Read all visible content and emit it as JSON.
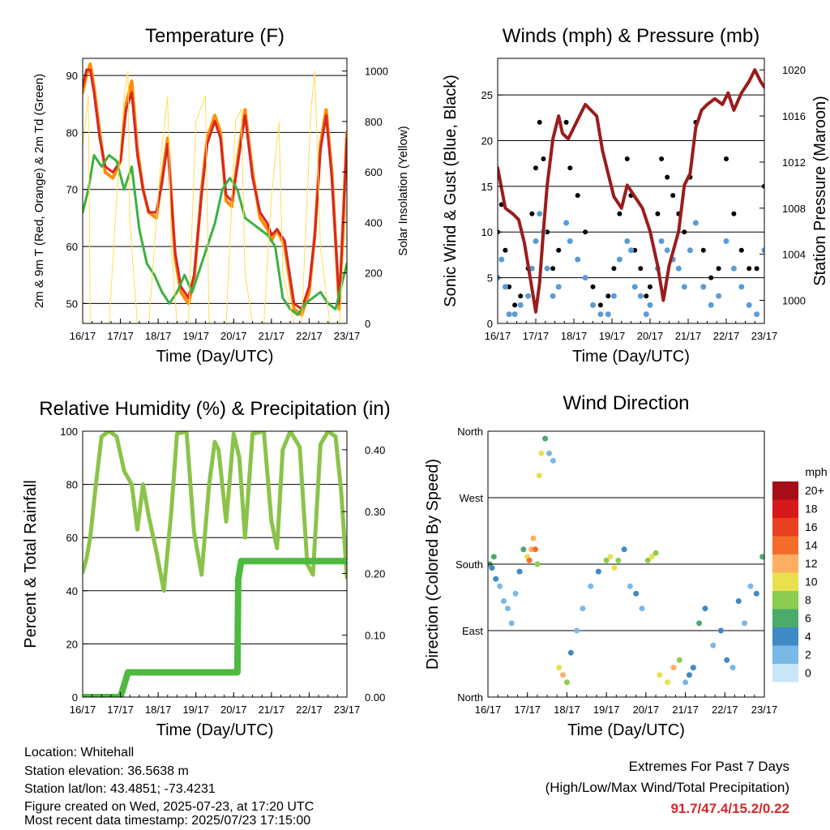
{
  "time_ticks": [
    "16/17",
    "17/17",
    "18/17",
    "19/17",
    "20/17",
    "21/17",
    "22/17",
    "23/17"
  ],
  "x_axis_label": "Time (Day/UTC)",
  "colors": {
    "temp_2m": "#ff8c00",
    "temp_9m": "#d62728",
    "dewpoint": "#3cb043",
    "insolation": "#ffdd55",
    "wind": "#5b9bd5",
    "gust": "#000000",
    "pressure": "#9b1c1c",
    "rh": "#8bc34a",
    "precip": "#4cbb3e"
  },
  "wind_speed_scale": {
    "unit": "mph",
    "labels": [
      "20+",
      "18",
      "16",
      "14",
      "12",
      "10",
      "8",
      "6",
      "4",
      "2",
      "0"
    ],
    "colors": [
      "#a50f15",
      "#d7191c",
      "#e8411f",
      "#f46d2a",
      "#fdae61",
      "#e9e050",
      "#8ccc50",
      "#4aab6a",
      "#3f89c4",
      "#7ab8e8",
      "#c8e6f8"
    ]
  },
  "chart_data": [
    {
      "type": "line",
      "title": "Temperature (F)",
      "xlabel": "Time (Day/UTC)",
      "ylabel": "2m & 9m T (Red, Orange) & 2m Td (Green)",
      "ylabel_right": "Solar Insolation (Yellow)",
      "xlim": [
        0,
        7
      ],
      "ylim": [
        46.5,
        93
      ],
      "yticks": [
        50,
        60,
        70,
        80,
        90
      ],
      "ylim_right": [
        0,
        1050
      ],
      "yticks_right": [
        0,
        200,
        400,
        600,
        800,
        1000
      ],
      "grid": true,
      "series": [
        {
          "name": "2m T",
          "axis": "left",
          "x": [
            0,
            0.1,
            0.2,
            0.3,
            0.45,
            0.6,
            0.8,
            1.0,
            1.15,
            1.3,
            1.45,
            1.6,
            1.75,
            1.95,
            2.1,
            2.25,
            2.45,
            2.6,
            2.8,
            2.95,
            3.15,
            3.3,
            3.5,
            3.65,
            3.8,
            3.95,
            4.1,
            4.3,
            4.5,
            4.7,
            4.9,
            5.0,
            5.15,
            5.35,
            5.6,
            5.8,
            6.0,
            6.15,
            6.3,
            6.45,
            6.6,
            6.8,
            7.0
          ],
          "y": [
            87,
            90,
            92,
            88,
            80,
            73,
            72,
            75,
            85,
            89,
            77,
            70,
            66,
            65,
            72,
            79,
            58,
            52,
            50,
            54,
            70,
            79,
            83,
            80,
            68,
            67,
            75,
            84,
            73,
            65,
            63,
            61,
            63,
            60,
            49,
            48,
            52,
            62,
            78,
            84,
            73,
            49,
            80
          ]
        },
        {
          "name": "9m T",
          "axis": "left",
          "x": [
            0,
            0.1,
            0.2,
            0.3,
            0.45,
            0.6,
            0.8,
            1.0,
            1.15,
            1.3,
            1.45,
            1.6,
            1.75,
            1.95,
            2.1,
            2.25,
            2.45,
            2.6,
            2.8,
            2.95,
            3.15,
            3.3,
            3.5,
            3.65,
            3.8,
            3.95,
            4.1,
            4.3,
            4.5,
            4.7,
            4.9,
            5.0,
            5.15,
            5.35,
            5.6,
            5.8,
            6.0,
            6.15,
            6.3,
            6.45,
            6.6,
            6.8,
            7.0
          ],
          "y": [
            88,
            91,
            91,
            87,
            79,
            74,
            73,
            75,
            84,
            87,
            76,
            70,
            66,
            66,
            71,
            78,
            59,
            53,
            51,
            55,
            69,
            78,
            82,
            79,
            69,
            68,
            74,
            83,
            72,
            66,
            64,
            62,
            63,
            61,
            50,
            49,
            53,
            62,
            77,
            83,
            72,
            50,
            79
          ]
        },
        {
          "name": "2m Td",
          "axis": "left",
          "x": [
            0,
            0.15,
            0.3,
            0.5,
            0.7,
            0.9,
            1.1,
            1.3,
            1.5,
            1.7,
            1.9,
            2.1,
            2.3,
            2.5,
            2.7,
            2.9,
            3.1,
            3.3,
            3.5,
            3.7,
            3.9,
            4.1,
            4.3,
            4.5,
            4.7,
            4.9,
            5.1,
            5.3,
            5.5,
            5.7,
            5.9,
            6.1,
            6.3,
            6.5,
            6.7,
            6.85,
            7.0
          ],
          "y": [
            66,
            70,
            76,
            74,
            76,
            75,
            70,
            74,
            63,
            57,
            55,
            52,
            50,
            52,
            55,
            52,
            56,
            60,
            64,
            70,
            72,
            70,
            65,
            64,
            63,
            62,
            60,
            51,
            49,
            48,
            50,
            51,
            52,
            50,
            49,
            53,
            57
          ]
        },
        {
          "name": "Solar Insolation",
          "axis": "right",
          "x": [
            0,
            0.15,
            0.2,
            0.45,
            0.7,
            0.9,
            1.1,
            1.2,
            1.25,
            1.45,
            1.6,
            1.75,
            2.1,
            2.25,
            2.35,
            2.5,
            2.8,
            3.0,
            3.25,
            3.35,
            3.6,
            3.8,
            4.05,
            4.2,
            4.3,
            4.5,
            4.8,
            5.0,
            5.2,
            5.3,
            5.6,
            5.8,
            6.05,
            6.15,
            6.3,
            6.55,
            6.8,
            7.0
          ],
          "y": [
            700,
            900,
            0,
            0,
            0,
            500,
            900,
            1000,
            400,
            0,
            0,
            0,
            700,
            900,
            300,
            0,
            0,
            800,
            900,
            0,
            0,
            0,
            800,
            850,
            200,
            0,
            0,
            500,
            800,
            200,
            0,
            0,
            850,
            1000,
            300,
            0,
            0,
            500
          ]
        }
      ]
    },
    {
      "type": "scatter",
      "title": "Winds (mph) & Pressure (mb)",
      "xlabel": "Time (Day/UTC)",
      "ylabel": "Sonic Wind & Gust (Blue, Black)",
      "ylabel_right": "Station Pressure (Maroon)",
      "xlim": [
        0,
        7
      ],
      "ylim": [
        0,
        29
      ],
      "yticks": [
        0,
        5,
        10,
        15,
        20,
        25
      ],
      "ylim_right": [
        998,
        1021
      ],
      "yticks_right": [
        1000,
        1004,
        1008,
        1012,
        1016,
        1020
      ],
      "grid": true,
      "series": [
        {
          "name": "Gust",
          "x": [
            0,
            0.1,
            0.2,
            0.3,
            0.45,
            0.6,
            0.8,
            0.9,
            1.0,
            1.1,
            1.2,
            1.3,
            1.45,
            1.6,
            1.8,
            1.9,
            2.1,
            2.3,
            2.5,
            2.7,
            2.9,
            3.05,
            3.2,
            3.4,
            3.5,
            3.6,
            3.75,
            3.9,
            4.0,
            4.2,
            4.3,
            4.45,
            4.6,
            4.75,
            4.9,
            5.05,
            5.2,
            5.4,
            5.6,
            5.8,
            6.0,
            6.2,
            6.4,
            6.6,
            6.8,
            7.0
          ],
          "y": [
            10,
            13,
            8,
            4,
            2,
            3,
            6,
            12,
            17,
            22,
            18,
            10,
            6,
            8,
            22,
            17,
            14,
            10,
            4,
            2,
            3,
            6,
            12,
            18,
            14,
            8,
            6,
            3,
            4,
            12,
            18,
            16,
            14,
            12,
            10,
            16,
            22,
            8,
            5,
            6,
            18,
            12,
            8,
            6,
            6,
            15
          ]
        },
        {
          "name": "Sonic Wind",
          "x": [
            0,
            0.1,
            0.2,
            0.3,
            0.45,
            0.6,
            0.8,
            0.9,
            1.0,
            1.1,
            1.2,
            1.3,
            1.45,
            1.6,
            1.8,
            1.9,
            2.1,
            2.3,
            2.5,
            2.7,
            2.9,
            3.05,
            3.2,
            3.4,
            3.5,
            3.6,
            3.75,
            3.9,
            4.0,
            4.2,
            4.3,
            4.45,
            4.6,
            4.75,
            4.9,
            5.05,
            5.2,
            5.4,
            5.6,
            5.8,
            6.0,
            6.2,
            6.4,
            6.6,
            6.8,
            7.0
          ],
          "y": [
            5,
            7,
            4,
            1,
            1,
            2,
            3,
            6,
            9,
            12,
            10,
            6,
            3,
            4,
            11,
            9,
            7,
            5,
            2,
            1,
            1,
            3,
            7,
            9,
            8,
            4,
            3,
            1,
            2,
            6,
            9,
            8,
            7,
            6,
            4,
            8,
            11,
            4,
            2,
            3,
            9,
            6,
            4,
            2,
            1,
            8
          ]
        },
        {
          "name": "Station Pressure",
          "axis": "right",
          "x": [
            0,
            0.2,
            0.4,
            0.55,
            0.7,
            0.85,
            1.0,
            1.1,
            1.2,
            1.3,
            1.45,
            1.6,
            1.7,
            1.85,
            2.0,
            2.3,
            2.6,
            2.75,
            2.9,
            3.05,
            3.25,
            3.4,
            3.6,
            3.8,
            4.0,
            4.2,
            4.35,
            4.5,
            4.75,
            4.9,
            5.05,
            5.2,
            5.35,
            5.5,
            5.7,
            5.9,
            6.05,
            6.2,
            6.4,
            6.6,
            6.75,
            6.9,
            7.0
          ],
          "y": [
            1011.5,
            1008,
            1007.5,
            1007,
            1005,
            1002,
            999,
            1001.5,
            1006,
            1010,
            1014,
            1016,
            1014.5,
            1014,
            1015,
            1017,
            1016,
            1013,
            1011,
            1009,
            1008,
            1010,
            1009,
            1008,
            1006,
            1003,
            1000,
            1003,
            1006,
            1010,
            1011,
            1015,
            1016.5,
            1017,
            1017.5,
            1017,
            1018,
            1016.5,
            1018,
            1019,
            1020,
            1019,
            1018.5
          ]
        }
      ]
    },
    {
      "type": "line",
      "title": "Relative Humidity (%) & Precipitation (in)",
      "xlabel": "Time (Day/UTC)",
      "ylabel": "Percent & Total Rainfall",
      "xlim": [
        0,
        7
      ],
      "ylim": [
        0,
        100
      ],
      "yticks": [
        0,
        20,
        40,
        60,
        80,
        100
      ],
      "ylim_right": [
        0,
        0.43
      ],
      "yticks_right": [
        0.0,
        0.1,
        0.2,
        0.3,
        0.4
      ],
      "ytick_labels_right": [
        "0.00",
        "0.10",
        "0.20",
        "0.30",
        "0.40"
      ],
      "grid": true,
      "series": [
        {
          "name": "Relative Humidity",
          "axis": "left",
          "x": [
            0,
            0.1,
            0.2,
            0.35,
            0.5,
            0.7,
            0.9,
            1.1,
            1.3,
            1.45,
            1.6,
            1.75,
            1.95,
            2.15,
            2.35,
            2.5,
            2.75,
            2.95,
            3.15,
            3.35,
            3.5,
            3.6,
            3.8,
            4.0,
            4.15,
            4.3,
            4.5,
            4.8,
            5.0,
            5.15,
            5.3,
            5.5,
            5.75,
            5.95,
            6.1,
            6.3,
            6.5,
            6.7,
            6.85,
            7.0
          ],
          "y": [
            47,
            52,
            60,
            80,
            98,
            100,
            98,
            85,
            80,
            63,
            80,
            68,
            55,
            40,
            70,
            99,
            100,
            62,
            46,
            80,
            96,
            93,
            66,
            99,
            90,
            60,
            99,
            100,
            66,
            56,
            93,
            100,
            94,
            50,
            46,
            95,
            100,
            98,
            77,
            45
          ]
        },
        {
          "name": "Total Precipitation",
          "axis": "right",
          "x": [
            0,
            0.7,
            1.0,
            1.05,
            1.2,
            2.0,
            3.0,
            4.1,
            4.12,
            4.2,
            5.0,
            6.0,
            7.0
          ],
          "y": [
            0.0,
            0.0,
            0.0,
            0.01,
            0.04,
            0.04,
            0.04,
            0.04,
            0.19,
            0.22,
            0.22,
            0.22,
            0.22
          ]
        }
      ]
    },
    {
      "type": "scatter",
      "title": "Wind Direction",
      "xlabel": "Time (Day/UTC)",
      "ylabel": "Direction (Colored By Speed)",
      "xlim": [
        0,
        7
      ],
      "ylim": [
        0,
        360
      ],
      "yticks": [
        0,
        90,
        180,
        270,
        360
      ],
      "ytick_labels": [
        "North",
        "East",
        "South",
        "West",
        "North"
      ],
      "grid": true,
      "color_by": "Speed (mph)",
      "series": [
        {
          "name": "Direction",
          "x": [
            0.05,
            0.1,
            0.15,
            0.2,
            0.3,
            0.4,
            0.5,
            0.6,
            0.7,
            0.8,
            0.9,
            1.0,
            1.05,
            1.1,
            1.15,
            1.2,
            1.25,
            1.3,
            1.35,
            1.45,
            1.55,
            1.65,
            1.8,
            1.9,
            2.0,
            2.1,
            2.25,
            2.4,
            2.6,
            2.8,
            3.0,
            3.1,
            3.2,
            3.3,
            3.45,
            3.6,
            3.75,
            3.9,
            4.05,
            4.15,
            4.25,
            4.35,
            4.55,
            4.7,
            4.85,
            5.0,
            5.1,
            5.2,
            5.35,
            5.5,
            5.7,
            5.9,
            6.05,
            6.2,
            6.35,
            6.5,
            6.65,
            6.8,
            6.95
          ],
          "y": [
            180,
            175,
            190,
            160,
            150,
            130,
            120,
            100,
            140,
            170,
            200,
            190,
            185,
            200,
            215,
            200,
            180,
            300,
            330,
            350,
            330,
            320,
            40,
            30,
            20,
            60,
            90,
            120,
            150,
            170,
            185,
            190,
            175,
            185,
            200,
            150,
            140,
            120,
            185,
            190,
            195,
            30,
            20,
            40,
            50,
            20,
            30,
            40,
            100,
            120,
            70,
            90,
            50,
            40,
            130,
            100,
            150,
            140,
            190
          ],
          "speed": [
            5,
            4,
            6,
            3,
            2,
            2,
            1,
            1,
            2,
            4,
            6,
            10,
            14,
            12,
            11,
            13,
            8,
            9,
            10,
            6,
            2,
            1,
            10,
            12,
            8,
            3,
            2,
            1,
            2,
            4,
            8,
            9,
            10,
            7,
            4,
            2,
            3,
            1,
            7,
            9,
            8,
            9,
            10,
            12,
            8,
            2,
            3,
            4,
            5,
            3,
            2,
            3,
            4,
            2,
            3,
            1,
            2,
            4,
            6
          ]
        }
      ]
    }
  ],
  "footer": {
    "location": "Location: Whitehall",
    "elevation": "Station elevation: 36.5638 m",
    "latlon": "Station lat/lon: 43.4851; -73.4231",
    "created": "Figure created on Wed, 2025-07-23, at 17:20 UTC",
    "recent": "Most recent data timestamp: 2025/07/23 17:15:00"
  },
  "extremes": {
    "title": "Extremes For Past 7 Days",
    "subtitle": "(High/Low/Max Wind/Total Precipitation)",
    "values": "91.7/47.4/15.2/0.22"
  }
}
